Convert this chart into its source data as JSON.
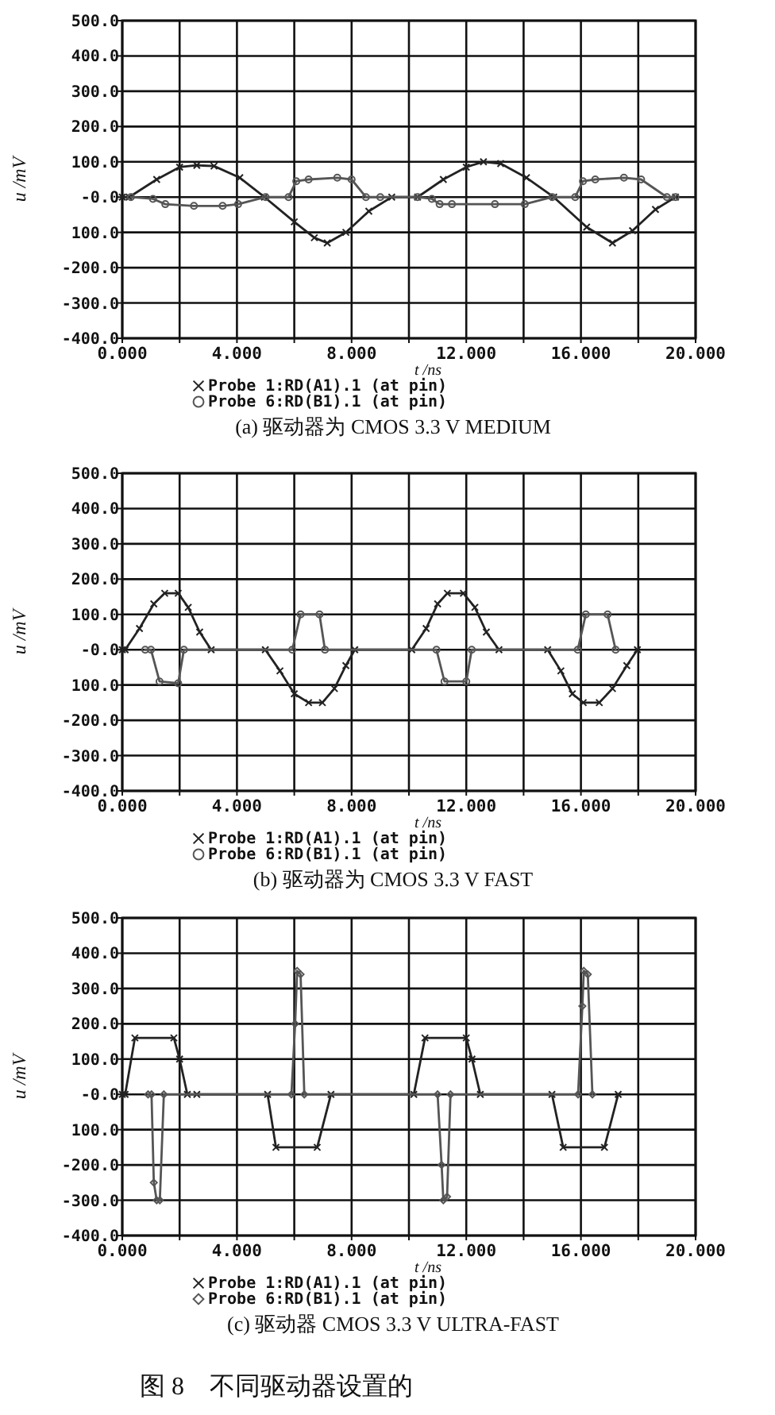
{
  "chart_data": [
    {
      "type": "line",
      "title": "(a) 驱动器为 CMOS 3.3 V MEDIUM",
      "xlabel": "t /ns",
      "ylabel": "u /mV",
      "grid": true,
      "legend": "bottom",
      "xlim": [
        0,
        20
      ],
      "xticks": [
        {
          "value": 0,
          "label": "0.000"
        },
        {
          "value": 2,
          "label": null
        },
        {
          "value": 4,
          "label": "4.000"
        },
        {
          "value": 6,
          "label": null
        },
        {
          "value": 8,
          "label": "8.000"
        },
        {
          "value": 10,
          "label": null
        },
        {
          "value": 12,
          "label": "12.000"
        },
        {
          "value": 14,
          "label": null
        },
        {
          "value": 16,
          "label": "16.000"
        },
        {
          "value": 18,
          "label": null
        },
        {
          "value": 20,
          "label": "20.000"
        }
      ],
      "ylim": [
        -400,
        500
      ],
      "yticks": [
        {
          "value": 500,
          "label": "500.0"
        },
        {
          "value": 400,
          "label": "400.0"
        },
        {
          "value": 300,
          "label": "300.0"
        },
        {
          "value": 200,
          "label": "200.0"
        },
        {
          "value": 100,
          "label": "100.0"
        },
        {
          "value": 0,
          "label": "-0.0"
        },
        {
          "value": -100,
          "label": "100.0"
        },
        {
          "value": -200,
          "label": "-200.0"
        },
        {
          "value": -300,
          "label": "-300.0"
        },
        {
          "value": -400,
          "label": "-400.0"
        }
      ],
      "series": [
        {
          "name": "Probe 1:RD(A1).1 (at pin)",
          "color": "#222222",
          "marker": "cross",
          "x": [
            0,
            0.24,
            1.2,
            2.0,
            2.6,
            3.2,
            4.1,
            4.96,
            6.0,
            6.7,
            7.15,
            7.8,
            8.6,
            9.4,
            10.3,
            11.2,
            12.0,
            12.6,
            13.2,
            14.1,
            15.05,
            16.2,
            17.1,
            17.8,
            18.6,
            19.3
          ],
          "values": [
            0,
            0,
            50,
            85,
            90,
            88,
            55,
            0,
            -70,
            -115,
            -130,
            -100,
            -40,
            0,
            0,
            50,
            85,
            100,
            95,
            55,
            0,
            -85,
            -130,
            -95,
            -35,
            0
          ]
        },
        {
          "name": "Probe 6:RD(B1).1 (at pin)",
          "color": "#555555",
          "marker": "circle",
          "x": [
            0.3,
            1.07,
            1.5,
            2.5,
            3.5,
            4.04,
            5.0,
            5.8,
            6.07,
            6.5,
            7.5,
            8.0,
            8.5,
            9.0,
            10.3,
            10.8,
            11.07,
            11.5,
            13,
            14.04,
            15.0,
            15.8,
            16.07,
            16.5,
            17.5,
            18.1,
            19.0,
            19.3
          ],
          "values": [
            0,
            -5,
            -20,
            -25,
            -25,
            -20,
            0,
            0,
            45,
            50,
            55,
            50,
            0,
            0,
            0,
            -5,
            -20,
            -20,
            -20,
            -20,
            0,
            0,
            45,
            50,
            55,
            50,
            0,
            0
          ]
        }
      ]
    },
    {
      "type": "line",
      "title": "(b) 驱动器为 CMOS 3.3 V FAST",
      "xlabel": "t /ns",
      "ylabel": "u /mV",
      "grid": true,
      "legend": "bottom",
      "xlim": [
        0,
        20
      ],
      "xticks": [
        {
          "value": 0,
          "label": "0.000"
        },
        {
          "value": 2,
          "label": null
        },
        {
          "value": 4,
          "label": "4.000"
        },
        {
          "value": 6,
          "label": null
        },
        {
          "value": 8,
          "label": "8.000"
        },
        {
          "value": 10,
          "label": null
        },
        {
          "value": 12,
          "label": "12.000"
        },
        {
          "value": 14,
          "label": null
        },
        {
          "value": 16,
          "label": "16.000"
        },
        {
          "value": 18,
          "label": null
        },
        {
          "value": 20,
          "label": "20.000"
        }
      ],
      "ylim": [
        -400,
        500
      ],
      "yticks": [
        {
          "value": 500,
          "label": "500.0"
        },
        {
          "value": 400,
          "label": "400.0"
        },
        {
          "value": 300,
          "label": "300.0"
        },
        {
          "value": 200,
          "label": "200.0"
        },
        {
          "value": 100,
          "label": "100.0"
        },
        {
          "value": 0,
          "label": "-0.0"
        },
        {
          "value": -100,
          "label": "100.0"
        },
        {
          "value": -200,
          "label": "-200.0"
        },
        {
          "value": -300,
          "label": "-300.0"
        },
        {
          "value": -400,
          "label": "-400.0"
        }
      ],
      "series": [
        {
          "name": "Probe 1:RD(A1).1 (at pin)",
          "color": "#222222",
          "marker": "cross",
          "x": [
            0,
            0.1,
            0.6,
            1.1,
            1.48,
            1.95,
            2.3,
            2.7,
            3.1,
            4.99,
            5.5,
            6.0,
            6.5,
            6.98,
            7.4,
            7.8,
            8.11,
            10.1,
            10.6,
            11.0,
            11.34,
            11.9,
            12.3,
            12.7,
            13.14,
            14.84,
            15.3,
            15.7,
            16.08,
            16.64,
            17.1,
            17.6,
            17.97
          ],
          "values": [
            0,
            0,
            60,
            130,
            160,
            160,
            120,
            50,
            0,
            0,
            -60,
            -125,
            -150,
            -150,
            -110,
            -45,
            0,
            0,
            60,
            130,
            160,
            160,
            120,
            50,
            0,
            0,
            -60,
            -125,
            -150,
            -150,
            -110,
            -45,
            0
          ]
        },
        {
          "name": "Probe 6:RD(B1).1 (at pin)",
          "color": "#555555",
          "marker": "circle",
          "x": [
            0.8,
            1.0,
            1.3,
            1.95,
            2.15,
            5.93,
            6.22,
            6.88,
            7.07,
            10.96,
            11.24,
            12.0,
            12.19,
            15.89,
            16.17,
            16.93,
            17.21
          ],
          "values": [
            0,
            0,
            -90,
            -95,
            0,
            0,
            100,
            100,
            0,
            0,
            -90,
            -90,
            0,
            0,
            100,
            100,
            0
          ]
        }
      ]
    },
    {
      "type": "line",
      "title": "(c) 驱动器 CMOS 3.3 V ULTRA-FAST",
      "xlabel": "t /ns",
      "ylabel": "u /mV",
      "grid": true,
      "legend": "bottom",
      "annotations": [
        "图 8　不同驱动器设置的"
      ],
      "xlim": [
        0,
        20
      ],
      "xticks": [
        {
          "value": 0,
          "label": "0.000"
        },
        {
          "value": 2,
          "label": null
        },
        {
          "value": 4,
          "label": "4.000"
        },
        {
          "value": 6,
          "label": null
        },
        {
          "value": 8,
          "label": "8.000"
        },
        {
          "value": 10,
          "label": null
        },
        {
          "value": 12,
          "label": "12.000"
        },
        {
          "value": 14,
          "label": null
        },
        {
          "value": 16,
          "label": "16.000"
        },
        {
          "value": 18,
          "label": null
        },
        {
          "value": 20,
          "label": "20.000"
        }
      ],
      "ylim": [
        -400,
        500
      ],
      "yticks": [
        {
          "value": 500,
          "label": "500.0"
        },
        {
          "value": 400,
          "label": "400.0"
        },
        {
          "value": 300,
          "label": "300.0"
        },
        {
          "value": 200,
          "label": "200.0"
        },
        {
          "value": 100,
          "label": "100.0"
        },
        {
          "value": 0,
          "label": "-0.0"
        },
        {
          "value": -100,
          "label": "100.0"
        },
        {
          "value": -200,
          "label": "-200.0"
        },
        {
          "value": -300,
          "label": "-300.0"
        },
        {
          "value": -400,
          "label": "-400.0"
        }
      ],
      "series": [
        {
          "name": "Probe 1:RD(A1).1 (at pin)",
          "color": "#222222",
          "marker": "cross",
          "x": [
            0,
            0.1,
            0.44,
            1.8,
            2.0,
            2.27,
            2.6,
            5.07,
            5.36,
            6.8,
            7.28,
            10.17,
            10.56,
            12.0,
            12.2,
            12.49,
            14.99,
            15.38,
            16.82,
            17.3
          ],
          "values": [
            0,
            0,
            160,
            160,
            100,
            0,
            0,
            0,
            -150,
            -150,
            0,
            0,
            160,
            160,
            100,
            0,
            0,
            -150,
            -150,
            0
          ]
        },
        {
          "name": "Probe 6:RD(B1).1 (at pin)",
          "color": "#555555",
          "marker": "diamond",
          "x": [
            0.9,
            1.02,
            1.1,
            1.2,
            1.31,
            1.45,
            5.9,
            6.03,
            6.1,
            6.22,
            6.35,
            11.0,
            11.14,
            11.2,
            11.33,
            11.45,
            15.9,
            16.05,
            16.1,
            16.24,
            16.4
          ],
          "values": [
            0,
            0,
            -250,
            -300,
            -300,
            0,
            0,
            200,
            350,
            340,
            0,
            0,
            -200,
            -300,
            -290,
            0,
            0,
            250,
            350,
            340,
            0
          ]
        }
      ]
    }
  ]
}
